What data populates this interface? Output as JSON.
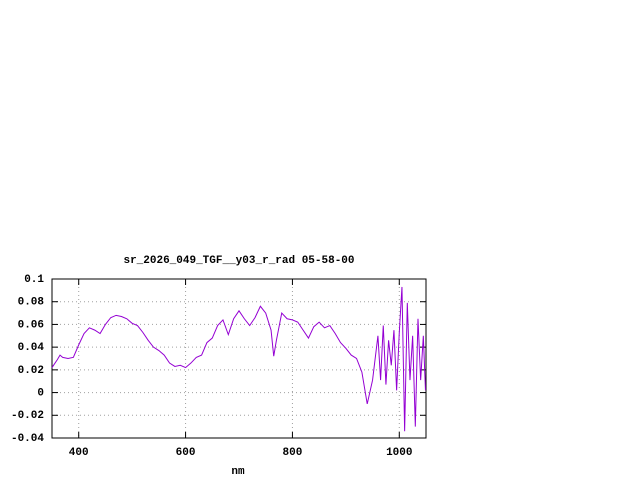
{
  "chart_data": {
    "type": "line",
    "title": "sr_2026_049_TGF__y03_r_rad 05-58-00",
    "xlabel": "nm",
    "xlim": [
      350,
      1050
    ],
    "xticks": [
      400,
      600,
      800,
      1000
    ],
    "ylim": [
      -0.04,
      0.1
    ],
    "yticks": [
      -0.04,
      -0.02,
      0,
      0.02,
      0.04,
      0.06,
      0.08,
      0.1
    ],
    "grid": true,
    "series": [
      {
        "color": "#9400d3",
        "x": [
          350,
          360,
          365,
          370,
          380,
          390,
          400,
          410,
          420,
          430,
          440,
          450,
          460,
          470,
          480,
          490,
          500,
          510,
          520,
          530,
          540,
          550,
          560,
          570,
          580,
          590,
          600,
          610,
          620,
          630,
          640,
          650,
          660,
          670,
          680,
          690,
          700,
          710,
          720,
          730,
          740,
          750,
          760,
          765,
          770,
          780,
          790,
          800,
          810,
          820,
          830,
          840,
          850,
          860,
          870,
          880,
          890,
          900,
          910,
          920,
          930,
          940,
          950,
          960,
          965,
          970,
          975,
          980,
          985,
          990,
          995,
          1000,
          1005,
          1010,
          1015,
          1020,
          1025,
          1030,
          1035,
          1040,
          1045,
          1049
        ],
        "values": [
          0.022,
          0.029,
          0.033,
          0.031,
          0.03,
          0.031,
          0.042,
          0.052,
          0.057,
          0.055,
          0.052,
          0.06,
          0.066,
          0.068,
          0.067,
          0.065,
          0.061,
          0.059,
          0.053,
          0.046,
          0.04,
          0.037,
          0.033,
          0.026,
          0.023,
          0.024,
          0.022,
          0.026,
          0.031,
          0.033,
          0.044,
          0.048,
          0.059,
          0.064,
          0.051,
          0.065,
          0.072,
          0.065,
          0.059,
          0.066,
          0.076,
          0.07,
          0.055,
          0.032,
          0.046,
          0.07,
          0.065,
          0.064,
          0.062,
          0.055,
          0.048,
          0.058,
          0.062,
          0.057,
          0.059,
          0.052,
          0.044,
          0.039,
          0.033,
          0.03,
          0.018,
          -0.01,
          0.011,
          0.05,
          0.011,
          0.059,
          0.007,
          0.046,
          0.024,
          0.055,
          0.002,
          0.053,
          0.093,
          -0.034,
          0.079,
          0.011,
          0.05,
          -0.03,
          0.065,
          0.011,
          0.05,
          0.002
        ]
      }
    ]
  }
}
